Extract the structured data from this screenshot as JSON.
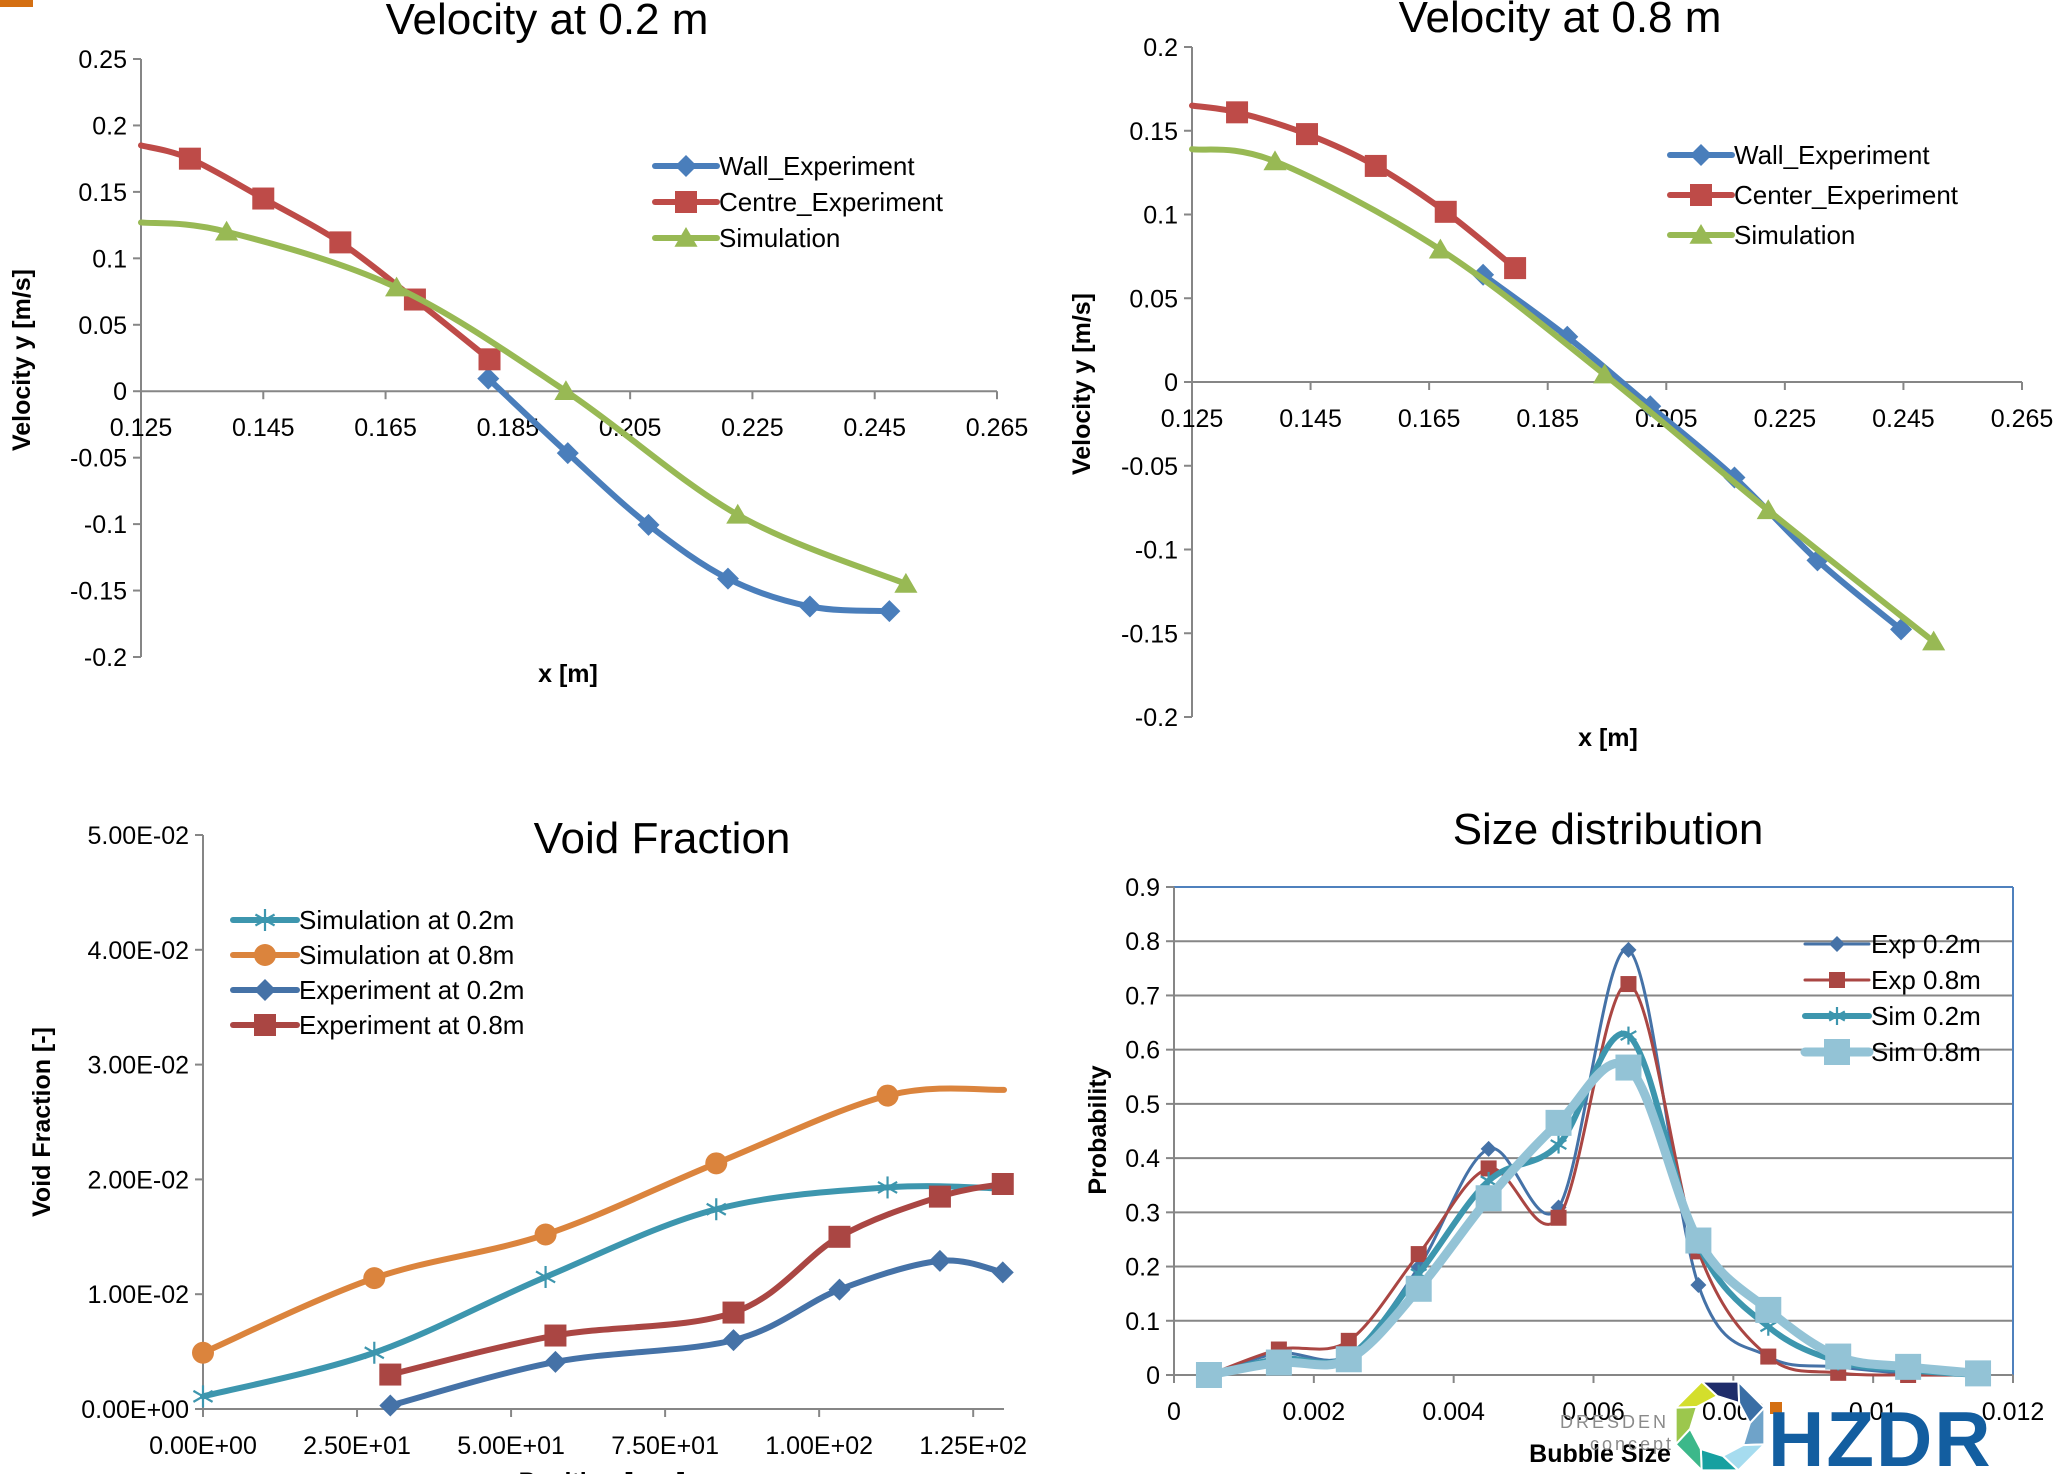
{
  "slide": {
    "accent_color": "#d46f12"
  },
  "logos": {
    "dresden": {
      "line1": "DRESDEN",
      "line2": "concept"
    },
    "hzdr": {
      "text": "HZDR",
      "color": "#135ea0",
      "dot_color": "#d46f12"
    }
  },
  "chart_data": [
    {
      "id": "vel02",
      "type": "line",
      "title": "Velocity at 0.2 m",
      "xlabel": "x [m]",
      "ylabel": "Velocity y [m/s]",
      "xlim": [
        0.125,
        0.265
      ],
      "ylim": [
        -0.2,
        0.25
      ],
      "xticks": [
        0.125,
        0.145,
        0.165,
        0.185,
        0.205,
        0.225,
        0.245,
        0.265
      ],
      "xtick_labels": [
        "0.125",
        "0.145",
        "0.165",
        "0.185",
        "0.205",
        "0.225",
        "0.245",
        "0.265"
      ],
      "yticks": [
        -0.2,
        -0.15,
        -0.1,
        -0.05,
        0,
        0.05,
        0.1,
        0.15,
        0.2,
        0.25
      ],
      "ytick_labels": [
        "-0.2",
        "-0.15",
        "-0.1",
        "-0.05",
        "0",
        "0.05",
        "0.1",
        "0.15",
        "0.2",
        "0.25"
      ],
      "grid": false,
      "legend_position": "top-right",
      "series": [
        {
          "name": "Wall_Experiment",
          "color": "#4a7ebb",
          "marker": "diamond",
          "x": [
            0.1818,
            0.1948,
            0.208,
            0.221,
            0.2344,
            0.2474
          ],
          "y": [
            0.0095,
            -0.0466,
            -0.1006,
            -0.141,
            -0.162,
            -0.1655
          ]
        },
        {
          "name": "Centre_Experiment",
          "color": "#be4b48",
          "marker": "square",
          "x": [
            0.125,
            0.133,
            0.145,
            0.1576,
            0.1698,
            0.182
          ],
          "y": [
            0.185,
            0.175,
            0.145,
            0.112,
            0.069,
            0.024
          ],
          "marker_skip_first": true
        },
        {
          "name": "Simulation",
          "color": "#98b954",
          "marker": "triangle",
          "x": [
            0.125,
            0.139,
            0.1668,
            0.1945,
            0.2226,
            0.2501
          ],
          "y": [
            0.127,
            0.12,
            0.078,
            0.0,
            -0.093,
            -0.145
          ],
          "marker_skip_first": true
        }
      ]
    },
    {
      "id": "vel08",
      "type": "line",
      "title": "Velocity at 0.8 m",
      "xlabel": "x [m]",
      "ylabel": "Velocity y [m/s]",
      "xlim": [
        0.125,
        0.265
      ],
      "ylim": [
        -0.2,
        0.2
      ],
      "xticks": [
        0.125,
        0.145,
        0.165,
        0.185,
        0.205,
        0.225,
        0.245,
        0.265
      ],
      "xtick_labels": [
        "0.125",
        "0.145",
        "0.165",
        "0.185",
        "0.205",
        "0.225",
        "0.245",
        "0.265"
      ],
      "yticks": [
        -0.2,
        -0.15,
        -0.1,
        -0.05,
        0,
        0.05,
        0.1,
        0.15,
        0.2
      ],
      "ytick_labels": [
        "-0.2",
        "-0.15",
        "-0.1",
        "-0.05",
        "0",
        "0.05",
        "0.1",
        "0.15",
        "0.2"
      ],
      "grid": false,
      "legend_position": "top-right",
      "series": [
        {
          "name": "Wall_Experiment",
          "color": "#4a7ebb",
          "marker": "diamond",
          "x": [
            0.1741,
            0.1883,
            0.2023,
            0.2165,
            0.2305,
            0.2446
          ],
          "y": [
            0.064,
            0.027,
            -0.0145,
            -0.057,
            -0.1065,
            -0.1477
          ]
        },
        {
          "name": "Center_Experiment",
          "color": "#be4b48",
          "marker": "square",
          "x": [
            0.125,
            0.1326,
            0.1444,
            0.156,
            0.1678,
            0.1795
          ],
          "y": [
            0.165,
            0.161,
            0.148,
            0.129,
            0.1016,
            0.068
          ],
          "marker_skip_first": true
        },
        {
          "name": "Simulation",
          "color": "#98b954",
          "marker": "triangle",
          "x": [
            0.125,
            0.139,
            0.1669,
            0.1946,
            0.2222,
            0.2501
          ],
          "y": [
            0.139,
            0.1317,
            0.079,
            0.0044,
            -0.0766,
            -0.155
          ],
          "marker_skip_first": true
        }
      ]
    },
    {
      "id": "void",
      "type": "line",
      "title": "Void Fraction",
      "xlabel": "Position [mm]",
      "ylabel": "Void Fraction [-]",
      "xlim": [
        0,
        130
      ],
      "ylim": [
        0,
        0.05
      ],
      "xticks": [
        0,
        25,
        50,
        75,
        100,
        125
      ],
      "xtick_labels": [
        "0.00E+00",
        "2.50E+01",
        "5.00E+01",
        "7.50E+01",
        "1.00E+02",
        "1.25E+02"
      ],
      "yticks": [
        0,
        0.01,
        0.02,
        0.03,
        0.04,
        0.05
      ],
      "ytick_labels": [
        "0.00E+00",
        "1.00E-02",
        "2.00E-02",
        "3.00E-02",
        "4.00E-02",
        "5.00E-02"
      ],
      "grid": false,
      "legend_position": "top-left",
      "series": [
        {
          "name": "Simulation at 0.2m",
          "color": "#3d96ae",
          "marker": "asterisk",
          "x": [
            0,
            27.8,
            55.6,
            83.3,
            111.1,
            130
          ],
          "y": [
            0.0011,
            0.0049,
            0.0115,
            0.0174,
            0.0193,
            0.0192
          ],
          "marker_skip_last": true
        },
        {
          "name": "Simulation at 0.8m",
          "color": "#db843d",
          "marker": "circle",
          "x": [
            0,
            27.8,
            55.6,
            83.3,
            111.1,
            130
          ],
          "y": [
            0.0049,
            0.0114,
            0.0152,
            0.0214,
            0.0273,
            0.0278
          ],
          "marker_skip_last": true
        },
        {
          "name": "Experiment at 0.2m",
          "color": "#4572a7",
          "marker": "diamond",
          "x": [
            30.4,
            57.2,
            86.1,
            103.3,
            119.6,
            129.8
          ],
          "y": [
            0.0003,
            0.0041,
            0.006,
            0.0104,
            0.0129,
            0.0119
          ]
        },
        {
          "name": "Experiment at 0.8m",
          "color": "#aa4643",
          "marker": "square",
          "x": [
            30.4,
            57.2,
            86.1,
            103.3,
            119.6,
            129.8
          ],
          "y": [
            0.003,
            0.0064,
            0.0084,
            0.015,
            0.0185,
            0.0196
          ]
        }
      ]
    },
    {
      "id": "size",
      "type": "line",
      "title": "Size distribution",
      "xlabel": "Bubble Size",
      "ylabel": "Probability",
      "xlim": [
        0,
        0.012
      ],
      "ylim": [
        0,
        0.9
      ],
      "xticks": [
        0,
        0.002,
        0.004,
        0.006,
        0.008,
        0.01,
        0.012
      ],
      "xtick_labels": [
        "0",
        "0.002",
        "0.004",
        "0.006",
        "0.008",
        "0.01",
        "0.012"
      ],
      "yticks": [
        0,
        0.1,
        0.2,
        0.3,
        0.4,
        0.5,
        0.6,
        0.7,
        0.8,
        0.9
      ],
      "ytick_labels": [
        "0",
        "0.1",
        "0.2",
        "0.3",
        "0.4",
        "0.5",
        "0.6",
        "0.7",
        "0.8",
        "0.9"
      ],
      "grid": true,
      "legend_position": "top-right",
      "series": [
        {
          "name": "Exp 0.2m",
          "color": "#4572a7",
          "marker": "diamond",
          "thin": true,
          "x": [
            0.0005,
            0.0015,
            0.0025,
            0.0035,
            0.0045,
            0.0055,
            0.0065,
            0.0075,
            0.0085,
            0.0095,
            0.0105,
            0.0115
          ],
          "y": [
            0.0,
            0.04,
            0.037,
            0.199,
            0.417,
            0.309,
            0.784,
            0.166,
            0.034,
            0.015,
            0.003,
            0.0
          ]
        },
        {
          "name": "Exp 0.8m",
          "color": "#aa4643",
          "marker": "square",
          "thin": true,
          "x": [
            0.0005,
            0.0015,
            0.0025,
            0.0035,
            0.0045,
            0.0055,
            0.0065,
            0.0075,
            0.0085,
            0.0095,
            0.0105,
            0.0115
          ],
          "y": [
            0.0,
            0.047,
            0.063,
            0.223,
            0.381,
            0.29,
            0.721,
            0.228,
            0.034,
            0.004,
            0.0,
            0.0
          ]
        },
        {
          "name": "Sim 0.2m",
          "color": "#3d96ae",
          "marker": "asterisk",
          "x": [
            0.0005,
            0.0015,
            0.0025,
            0.0035,
            0.0045,
            0.0055,
            0.0065,
            0.0075,
            0.0085,
            0.0095,
            0.0105,
            0.0115
          ],
          "y": [
            0.0,
            0.03,
            0.034,
            0.187,
            0.358,
            0.425,
            0.626,
            0.24,
            0.089,
            0.025,
            0.009,
            0.0
          ]
        },
        {
          "name": "Sim 0.8m",
          "color": "#93c3d6",
          "marker": "square",
          "thick": true,
          "x": [
            0.0005,
            0.0015,
            0.0025,
            0.0035,
            0.0045,
            0.0055,
            0.0065,
            0.0075,
            0.0085,
            0.0095,
            0.0105,
            0.0115
          ],
          "y": [
            0.0,
            0.023,
            0.029,
            0.159,
            0.326,
            0.465,
            0.567,
            0.248,
            0.12,
            0.034,
            0.015,
            0.003
          ]
        }
      ]
    }
  ]
}
